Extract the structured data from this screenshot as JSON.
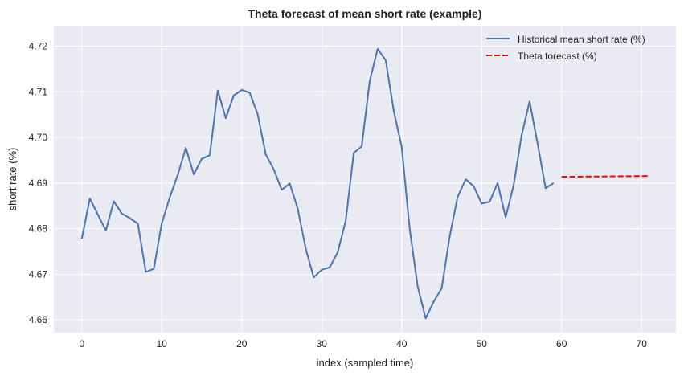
{
  "chart_data": {
    "type": "line",
    "title": "Theta forecast of mean short rate (example)",
    "xlabel": "index (sampled time)",
    "ylabel": "short rate (%)",
    "xlim": [
      -3.5,
      74.3
    ],
    "ylim": [
      4.6572,
      4.7245
    ],
    "xticks": [
      0,
      10,
      20,
      30,
      40,
      50,
      60,
      70
    ],
    "yticks": [
      4.66,
      4.67,
      4.68,
      4.69,
      4.7,
      4.71,
      4.72
    ],
    "ytick_labels": [
      "4.66",
      "4.67",
      "4.68",
      "4.69",
      "4.70",
      "4.71",
      "4.72"
    ],
    "grid": true,
    "legend_position": "top-right",
    "series": [
      {
        "name": "Historical mean short rate (%)",
        "color": "#4c72b0",
        "style": "solid",
        "x": [
          0,
          1,
          2,
          3,
          4,
          5,
          6,
          7,
          8,
          9,
          10,
          11,
          12,
          13,
          14,
          15,
          16,
          17,
          18,
          19,
          20,
          21,
          22,
          23,
          24,
          25,
          26,
          27,
          28,
          29,
          30,
          31,
          32,
          33,
          34,
          35,
          36,
          37,
          38,
          39,
          40,
          41,
          42,
          43,
          44,
          45,
          46,
          47,
          48,
          49,
          50,
          51,
          52,
          53,
          54,
          55,
          56,
          57,
          58,
          59
        ],
        "values": [
          4.6778,
          4.6866,
          4.6831,
          4.6796,
          4.686,
          4.6833,
          4.6823,
          4.6811,
          4.6705,
          4.6712,
          4.6812,
          4.6869,
          4.6918,
          4.6977,
          4.6919,
          4.6953,
          4.6961,
          4.7103,
          4.7042,
          4.7092,
          4.7104,
          4.7098,
          4.705,
          4.6963,
          4.693,
          4.6885,
          4.6899,
          4.6844,
          4.6756,
          4.6693,
          4.671,
          4.6715,
          4.6748,
          4.6817,
          4.6966,
          4.698,
          4.7124,
          4.7194,
          4.7169,
          4.7059,
          4.6979,
          4.68,
          4.6673,
          4.6603,
          4.664,
          4.6669,
          4.6783,
          4.687,
          4.6908,
          4.6893,
          4.6855,
          4.6859,
          4.69,
          4.6825,
          4.6895,
          4.7005,
          4.7079,
          4.6986,
          4.6889,
          4.69
        ]
      },
      {
        "name": "Theta forecast (%)",
        "color": "#ff0000",
        "style": "dashed",
        "x": [
          60,
          61,
          62,
          63,
          64,
          65,
          66,
          67,
          68,
          69,
          70,
          71
        ],
        "values": [
          4.69136,
          4.69138,
          4.69139,
          4.69141,
          4.69142,
          4.69144,
          4.69145,
          4.69147,
          4.69148,
          4.6915,
          4.69151,
          4.69153
        ]
      }
    ]
  }
}
